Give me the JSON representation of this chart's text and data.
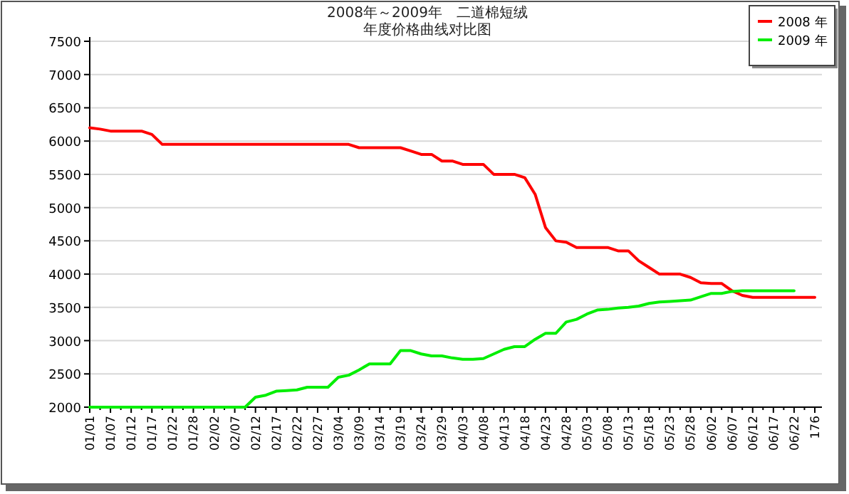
{
  "chart_data": {
    "type": "line",
    "title": "2008年～2009年　二道棉短绒",
    "subtitle": "年度价格曲线对比图",
    "categories": [
      "01/01",
      null,
      "01/07",
      null,
      "01/12",
      null,
      "01/17",
      null,
      "01/22",
      null,
      "01/28",
      null,
      "02/02",
      null,
      "02/07",
      null,
      "02/12",
      null,
      "02/17",
      null,
      "02/22",
      null,
      "02/27",
      null,
      "03/04",
      null,
      "03/09",
      null,
      "03/14",
      null,
      "03/19",
      null,
      "03/24",
      null,
      "03/29",
      null,
      "04/03",
      null,
      "04/08",
      null,
      "04/13",
      null,
      "04/18",
      null,
      "04/23",
      null,
      "04/28",
      null,
      "05/03",
      null,
      "05/08",
      null,
      "05/13",
      null,
      "05/18",
      null,
      "05/23",
      null,
      "05/28",
      null,
      "06/02",
      null,
      "06/07",
      null,
      "06/12",
      null,
      "06/17",
      null,
      "06/22",
      null,
      "176"
    ],
    "series": [
      {
        "name": "2008 年",
        "color": "#ff0000",
        "values": [
          6200,
          6180,
          6150,
          6150,
          6150,
          6150,
          6100,
          5950,
          5950,
          5950,
          5950,
          5950,
          5950,
          5950,
          5950,
          5950,
          5950,
          5950,
          5950,
          5950,
          5950,
          5950,
          5950,
          5950,
          5950,
          5950,
          5900,
          5900,
          5900,
          5900,
          5900,
          5850,
          5800,
          5800,
          5700,
          5700,
          5650,
          5650,
          5650,
          5500,
          5500,
          5500,
          5450,
          5200,
          4700,
          4500,
          4480,
          4400,
          4400,
          4400,
          4400,
          4350,
          4350,
          4200,
          4100,
          4000,
          4000,
          4000,
          3950,
          3870,
          3860,
          3860,
          3750,
          3680,
          3650,
          3650,
          3650,
          3650,
          3650,
          3650,
          3650
        ]
      },
      {
        "name": "2009 年",
        "color": "#00ee00",
        "values": [
          2000,
          2000,
          2000,
          2000,
          2000,
          2000,
          2000,
          2000,
          2000,
          2000,
          2000,
          2000,
          2000,
          2000,
          2000,
          2000,
          2150,
          2180,
          2240,
          2250,
          2260,
          2300,
          2300,
          2300,
          2450,
          2480,
          2560,
          2650,
          2650,
          2650,
          2850,
          2850,
          2800,
          2770,
          2770,
          2740,
          2720,
          2720,
          2730,
          2800,
          2870,
          2910,
          2910,
          3020,
          3110,
          3110,
          3280,
          3320,
          3400,
          3460,
          3470,
          3490,
          3500,
          3520,
          3560,
          3580,
          3590,
          3600,
          3610,
          3660,
          3710,
          3710,
          3740,
          3750,
          3750,
          3750,
          3750,
          3750,
          3750,
          null,
          null
        ]
      }
    ],
    "ylim": [
      2000,
      7500
    ],
    "yticks": [
      2000,
      2500,
      3000,
      3500,
      4000,
      4500,
      5000,
      5500,
      6000,
      6500,
      7000,
      7500
    ],
    "grid": "y",
    "legend": "top right"
  }
}
